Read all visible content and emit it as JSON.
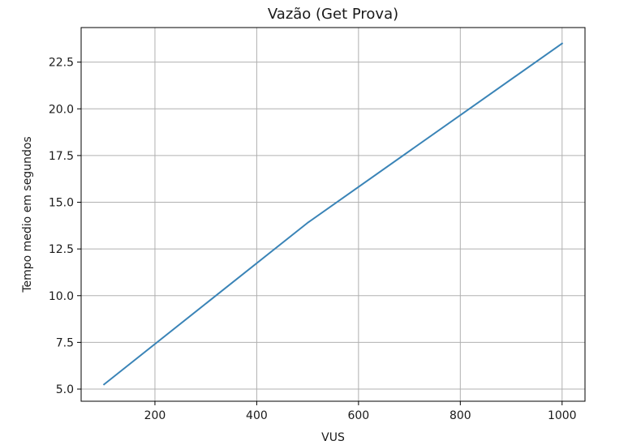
{
  "chart_data": {
    "type": "line",
    "title": "Vazão (Get Prova)",
    "xlabel": "VUS",
    "ylabel": "Tempo medio em segundos",
    "xlim": [
      55,
      1045
    ],
    "ylim": [
      4.35,
      24.35
    ],
    "xticks": [
      200,
      400,
      600,
      800,
      1000
    ],
    "yticks": [
      5.0,
      7.5,
      10.0,
      12.5,
      15.0,
      17.5,
      20.0,
      22.5
    ],
    "xtick_labels": [
      "200",
      "400",
      "600",
      "800",
      "1000"
    ],
    "ytick_labels": [
      "5.0",
      "7.5",
      "10.0",
      "12.5",
      "15.0",
      "17.5",
      "20.0",
      "22.5"
    ],
    "grid": true,
    "series": [
      {
        "color": "#3a84b7",
        "x": [
          100,
          500,
          1000
        ],
        "y": [
          5.25,
          13.9,
          23.5
        ]
      }
    ]
  }
}
